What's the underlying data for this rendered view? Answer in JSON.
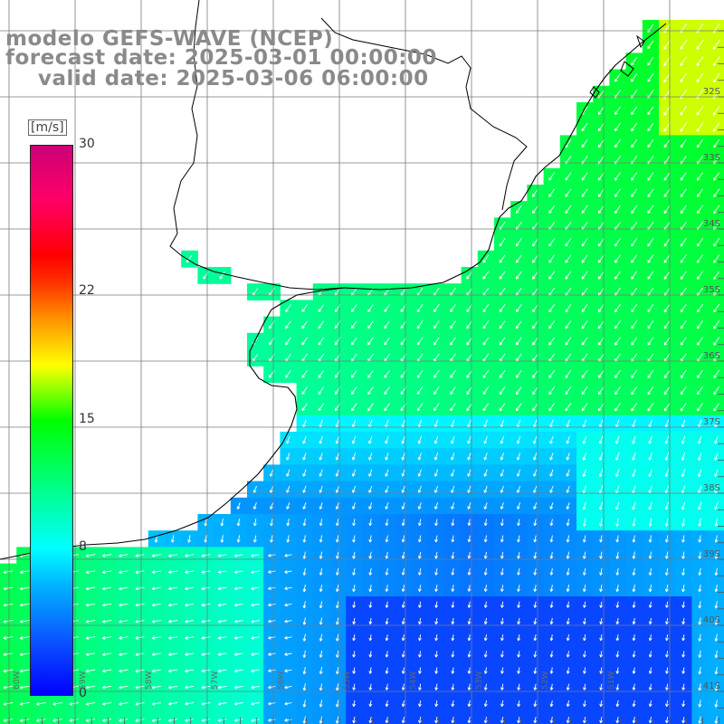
{
  "title": {
    "line1": "modelo GEFS-WAVE (NCEP)",
    "line2": "forecast date: 2025-03-01 00:00:00",
    "line3": "valid date: 2025-03-06 06:00:00"
  },
  "colorbar": {
    "unit": "[m/s]",
    "ticks": [
      {
        "label": "30",
        "value": 30
      },
      {
        "label": "22",
        "value": 22
      },
      {
        "label": "15",
        "value": 15
      },
      {
        "label": "8",
        "value": 8
      },
      {
        "label": "0",
        "value": 0
      }
    ],
    "range": [
      0,
      30
    ]
  },
  "lat_labels": [
    "32S",
    "33S",
    "34S",
    "35S",
    "36S",
    "37S",
    "38S",
    "39S",
    "40S",
    "41S"
  ],
  "lon_labels": [
    "60W",
    "59W",
    "58W",
    "57W",
    "56W",
    "55W",
    "54W",
    "53W",
    "52W",
    "51W"
  ],
  "colors": {
    "land": "#ffffff",
    "grid": "#7a7a7a",
    "coast": "#000000",
    "arrows": "#ffffff"
  }
}
